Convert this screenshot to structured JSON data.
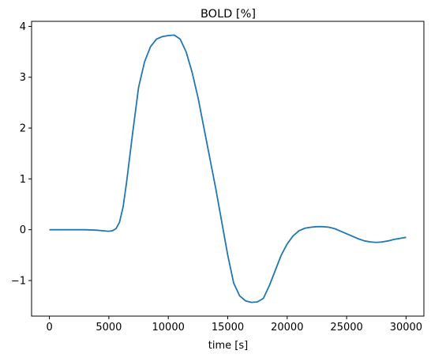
{
  "chart_data": {
    "type": "line",
    "title": "BOLD [%]",
    "xlabel": "time [s]",
    "ylabel": "",
    "xlim": [
      -1500,
      31500
    ],
    "ylim": [
      -1.7,
      4.1
    ],
    "grid": false,
    "x_ticks": [
      0,
      5000,
      10000,
      15000,
      20000,
      25000,
      30000
    ],
    "x_tick_labels": [
      "0",
      "5000",
      "10000",
      "15000",
      "20000",
      "25000",
      "30000"
    ],
    "y_ticks": [
      -1,
      0,
      1,
      2,
      3,
      4
    ],
    "y_tick_labels": [
      "−1",
      "0",
      "1",
      "2",
      "3",
      "4"
    ],
    "series": [
      {
        "color": "#1f77b4",
        "x": [
          0,
          1000,
          2000,
          3000,
          4000,
          4500,
          5000,
          5300,
          5600,
          5900,
          6200,
          6500,
          7000,
          7500,
          8000,
          8500,
          9000,
          9500,
          10000,
          10500,
          11000,
          11500,
          12000,
          12500,
          13000,
          13500,
          14000,
          14500,
          15000,
          15500,
          16000,
          16500,
          17000,
          17500,
          18000,
          18500,
          19000,
          19500,
          20000,
          20500,
          21000,
          21500,
          22000,
          22500,
          23000,
          23500,
          24000,
          24500,
          25000,
          25500,
          26000,
          26500,
          27000,
          27500,
          28000,
          28500,
          29000,
          29500,
          30000
        ],
        "values": [
          0.0,
          0.0,
          0.0,
          0.0,
          -0.01,
          -0.02,
          -0.03,
          -0.02,
          0.02,
          0.15,
          0.45,
          0.95,
          1.9,
          2.8,
          3.3,
          3.6,
          3.75,
          3.8,
          3.82,
          3.83,
          3.75,
          3.5,
          3.1,
          2.6,
          2.0,
          1.4,
          0.8,
          0.15,
          -0.5,
          -1.05,
          -1.3,
          -1.4,
          -1.43,
          -1.42,
          -1.35,
          -1.1,
          -0.8,
          -0.5,
          -0.28,
          -0.12,
          -0.02,
          0.03,
          0.05,
          0.06,
          0.06,
          0.05,
          0.02,
          -0.03,
          -0.08,
          -0.13,
          -0.18,
          -0.22,
          -0.24,
          -0.25,
          -0.24,
          -0.22,
          -0.19,
          -0.17,
          -0.15
        ]
      }
    ]
  }
}
